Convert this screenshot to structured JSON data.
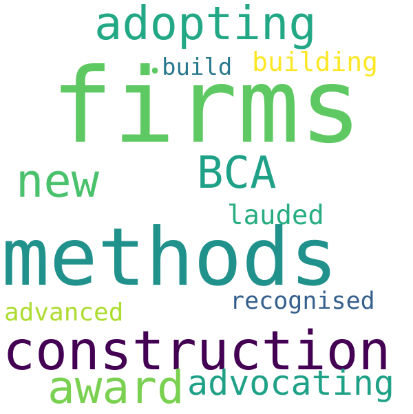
{
  "word_cloud": {
    "words": [
      {
        "id": "firms",
        "text": "firms",
        "color": "#5ec962"
      },
      {
        "id": "methods",
        "text": "methods",
        "color": "#21918c"
      },
      {
        "id": "construction",
        "text": "construction",
        "color": "#440154"
      },
      {
        "id": "adopting",
        "text": "adopting",
        "color": "#22a884"
      },
      {
        "id": "new",
        "text": "new",
        "color": "#4ac16d"
      },
      {
        "id": "bca",
        "text": "BCA",
        "color": "#1fa188"
      },
      {
        "id": "award",
        "text": "award",
        "color": "#7ad151"
      },
      {
        "id": "advocating",
        "text": "advocating",
        "color": "#1fa187"
      },
      {
        "id": "building",
        "text": "building",
        "color": "#fde725"
      },
      {
        "id": "build",
        "text": "build",
        "color": "#2a788e"
      },
      {
        "id": "lauded",
        "text": "lauded",
        "color": "#27ad81"
      },
      {
        "id": "recognised",
        "text": "recognised",
        "color": "#355f8d"
      },
      {
        "id": "advanced",
        "text": "advanced",
        "color": "#addc30"
      },
      {
        "id": "dot",
        "text": "•",
        "color": "#5ec962"
      }
    ]
  }
}
